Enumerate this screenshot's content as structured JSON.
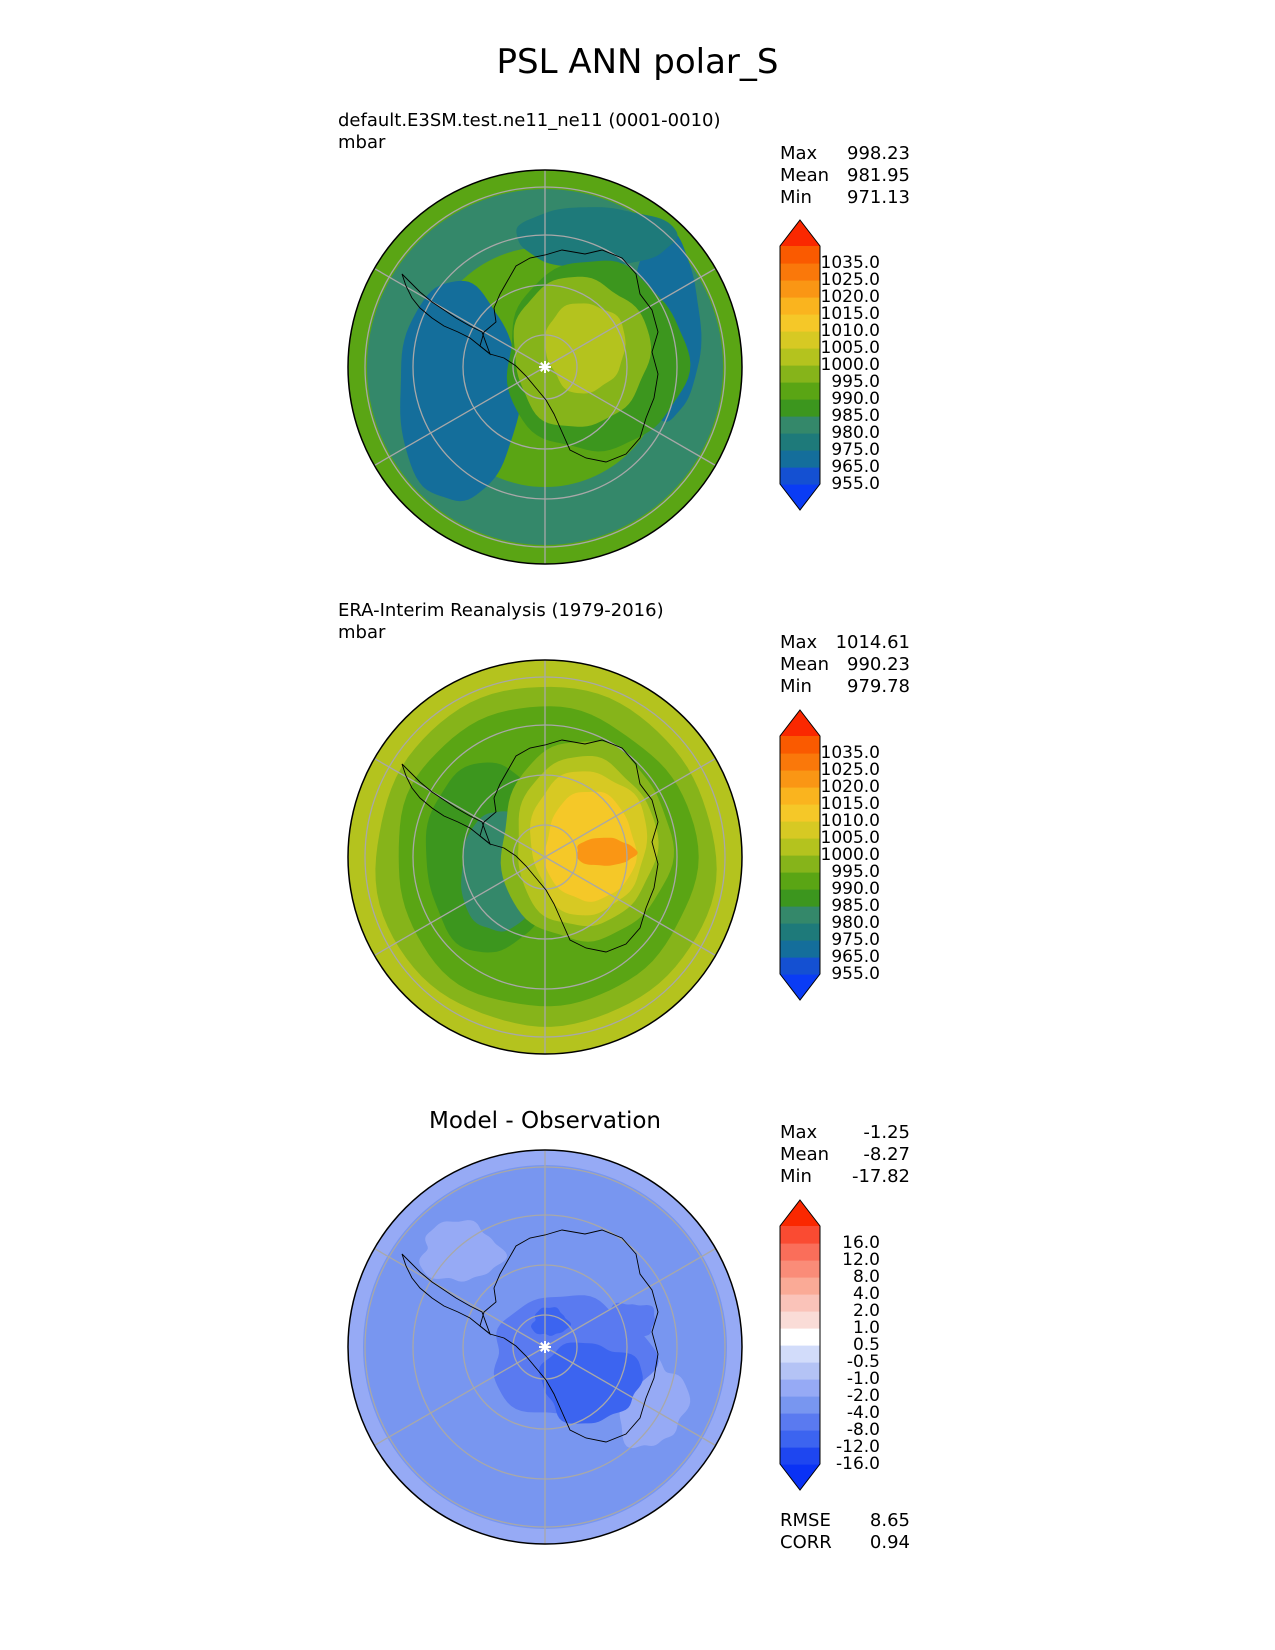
{
  "title": "PSL ANN polar_S",
  "panels": [
    {
      "id": "test",
      "title": "default.E3SM.test.ne11_ne11 (0001-0010)",
      "units": "mbar",
      "stats": [
        [
          "Max",
          "998.23"
        ],
        [
          "Mean",
          "981.95"
        ],
        [
          "Min",
          "971.13"
        ]
      ],
      "colorbar": {
        "colors": [
          "#0a3cf5",
          "#1450d2",
          "#146e9b",
          "#1e7a7a",
          "#34886a",
          "#3c961e",
          "#5aa514",
          "#86b41a",
          "#b4c31e",
          "#d7c923",
          "#f5c828",
          "#fab41e",
          "#fa9614",
          "#fa780a",
          "#fa5a00",
          "#fa2800"
        ],
        "labels": [
          "1035.0",
          "1025.0",
          "1020.0",
          "1015.0",
          "1010.0",
          "1005.0",
          "1000.0",
          "995.0",
          "990.0",
          "985.0",
          "980.0",
          "975.0",
          "965.0",
          "955.0"
        ]
      }
    },
    {
      "id": "reference",
      "title": "ERA-Interim Reanalysis (1979-2016)",
      "units": "mbar",
      "stats": [
        [
          "Max",
          "1014.61"
        ],
        [
          "Mean",
          "990.23"
        ],
        [
          "Min",
          "979.78"
        ]
      ],
      "colorbar": {
        "colors": [
          "#0a3cf5",
          "#1450d2",
          "#146e9b",
          "#1e7a7a",
          "#34886a",
          "#3c961e",
          "#5aa514",
          "#86b41a",
          "#b4c31e",
          "#d7c923",
          "#f5c828",
          "#fab41e",
          "#fa9614",
          "#fa780a",
          "#fa5a00",
          "#fa2800"
        ],
        "labels": [
          "1035.0",
          "1025.0",
          "1020.0",
          "1015.0",
          "1010.0",
          "1005.0",
          "1000.0",
          "995.0",
          "990.0",
          "985.0",
          "980.0",
          "975.0",
          "965.0",
          "955.0"
        ]
      }
    },
    {
      "id": "difference",
      "title": "Model - Observation",
      "units": "",
      "stats": [
        [
          "Max",
          "-1.25"
        ],
        [
          "Mean",
          "-8.27"
        ],
        [
          "Min",
          "-17.82"
        ]
      ],
      "footer_stats": [
        [
          "RMSE",
          "8.65"
        ],
        [
          "CORR",
          "0.94"
        ]
      ],
      "colorbar": {
        "colors": [
          "#0a32f5",
          "#1e46f0",
          "#3c64f0",
          "#5a7af0",
          "#7896f0",
          "#96aaf5",
          "#b4c3f5",
          "#d2dcfa",
          "#ffffff",
          "#fadcd7",
          "#fac3b9",
          "#faaa96",
          "#fa8c78",
          "#fa6e5a",
          "#fa4b32",
          "#fa2800"
        ],
        "labels": [
          "16.0",
          "12.0",
          "8.0",
          "4.0",
          "2.0",
          "1.0",
          "0.5",
          "-0.5",
          "-1.0",
          "-2.0",
          "-4.0",
          "-8.0",
          "-12.0",
          "-16.0"
        ]
      }
    }
  ],
  "chart_data": [
    {
      "type": "heatmap",
      "projection": "south polar stereographic",
      "title": "default.E3SM.test.ne11_ne11 (0001-0010)",
      "units": "mbar",
      "variable": "PSL",
      "levels": [
        955,
        965,
        975,
        980,
        985,
        990,
        995,
        1000,
        1005,
        1010,
        1015,
        1020,
        1025,
        1035
      ],
      "max": 998.23,
      "mean": 981.95,
      "min": 971.13,
      "gridlines": true,
      "coastlines": true
    },
    {
      "type": "heatmap",
      "projection": "south polar stereographic",
      "title": "ERA-Interim Reanalysis (1979-2016)",
      "units": "mbar",
      "variable": "PSL",
      "levels": [
        955,
        965,
        975,
        980,
        985,
        990,
        995,
        1000,
        1005,
        1010,
        1015,
        1020,
        1025,
        1035
      ],
      "max": 1014.61,
      "mean": 990.23,
      "min": 979.78,
      "gridlines": true,
      "coastlines": true
    },
    {
      "type": "heatmap",
      "projection": "south polar stereographic",
      "title": "Model - Observation",
      "variable": "PSL",
      "levels": [
        -16,
        -12,
        -8,
        -4,
        -2,
        -1,
        -0.5,
        0.5,
        1,
        2,
        4,
        8,
        12,
        16
      ],
      "max": -1.25,
      "mean": -8.27,
      "min": -17.82,
      "rmse": 8.65,
      "corr": 0.94,
      "gridlines": true,
      "coastlines": true
    }
  ]
}
